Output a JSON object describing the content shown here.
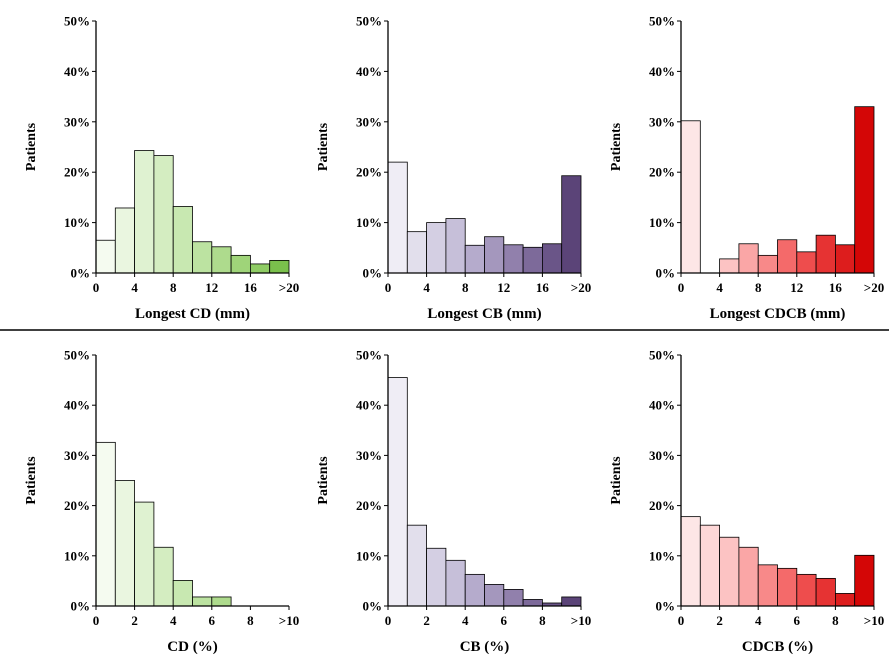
{
  "chart_data": [
    {
      "type": "bar",
      "xlabel": "Longest CD (mm)",
      "ylabel": "Patients",
      "ylim": [
        0,
        50
      ],
      "yticks": [
        "0%",
        "10%",
        "20%",
        "30%",
        "40%",
        "50%"
      ],
      "xticks": [
        "0",
        "4",
        "8",
        "12",
        "16",
        ">20"
      ],
      "values": [
        6.5,
        12.9,
        24.3,
        23.3,
        13.2,
        6.2,
        5.2,
        3.5,
        1.8,
        2.5
      ],
      "colors": [
        "#f5fbf0",
        "#eaf6e0",
        "#dff2d1",
        "#d4edc1",
        "#c8e8b1",
        "#bce3a1",
        "#aedb8d",
        "#9fd479",
        "#8fcc65",
        "#7ac04c"
      ]
    },
    {
      "type": "bar",
      "xlabel": "Longest CB (mm)",
      "ylabel": "Patients",
      "ylim": [
        0,
        50
      ],
      "yticks": [
        "0%",
        "10%",
        "20%",
        "30%",
        "40%",
        "50%"
      ],
      "xticks": [
        "0",
        "4",
        "8",
        "12",
        "16",
        ">20"
      ],
      "values": [
        22.0,
        8.2,
        10.0,
        10.8,
        5.5,
        7.2,
        5.6,
        5.1,
        5.8,
        19.3
      ],
      "colors": [
        "#efedf5",
        "#e2dfec",
        "#d4cfe3",
        "#c6bfd9",
        "#b5abcc",
        "#a497bd",
        "#9180ac",
        "#7d6a9a",
        "#6a5588",
        "#5b4478"
      ]
    },
    {
      "type": "bar",
      "xlabel": "Longest CDCB (mm)",
      "ylabel": "Patients",
      "ylim": [
        0,
        50
      ],
      "yticks": [
        "0%",
        "10%",
        "20%",
        "30%",
        "40%",
        "50%"
      ],
      "xticks": [
        "0",
        "4",
        "8",
        "12",
        "16",
        ">20"
      ],
      "values": [
        30.2,
        0,
        2.8,
        5.8,
        3.5,
        6.6,
        4.2,
        7.5,
        5.6,
        33.0
      ],
      "colors": [
        "#fde6e6",
        "#fdd7d7",
        "#fcc3c3",
        "#faa6a6",
        "#f88989",
        "#f46a6a",
        "#ee4d4d",
        "#e63333",
        "#dd1d1d",
        "#d40606"
      ]
    },
    {
      "type": "bar",
      "xlabel": "CD (%)",
      "ylabel": "Patients",
      "ylim": [
        0,
        50
      ],
      "yticks": [
        "0%",
        "10%",
        "20%",
        "30%",
        "40%",
        "50%"
      ],
      "xticks": [
        "0",
        "2",
        "4",
        "6",
        "8",
        ">10"
      ],
      "values": [
        32.6,
        25.0,
        20.7,
        11.7,
        5.1,
        1.8,
        1.8,
        0,
        0,
        0
      ],
      "colors": [
        "#f5fbf0",
        "#eaf6e0",
        "#dff2d1",
        "#d4edc1",
        "#c8e8b1",
        "#bce3a1",
        "#aedb8d",
        "#9fd479",
        "#8fcc65",
        "#7ac04c"
      ]
    },
    {
      "type": "bar",
      "xlabel": "CB (%)",
      "ylabel": "Patients",
      "ylim": [
        0,
        50
      ],
      "yticks": [
        "0%",
        "10%",
        "20%",
        "30%",
        "40%",
        "50%"
      ],
      "xticks": [
        "0",
        "2",
        "4",
        "6",
        "8",
        ">10"
      ],
      "values": [
        45.5,
        16.1,
        11.5,
        9.1,
        6.3,
        4.3,
        3.3,
        1.3,
        0.6,
        1.8
      ],
      "colors": [
        "#efedf5",
        "#e2dfec",
        "#d4cfe3",
        "#c6bfd9",
        "#b5abcc",
        "#a497bd",
        "#9180ac",
        "#7d6a9a",
        "#6a5588",
        "#5b4478"
      ]
    },
    {
      "type": "bar",
      "xlabel": "CDCB (%)",
      "ylabel": "Patients",
      "ylim": [
        0,
        50
      ],
      "yticks": [
        "0%",
        "10%",
        "20%",
        "30%",
        "40%",
        "50%"
      ],
      "xticks": [
        "0",
        "2",
        "4",
        "6",
        "8",
        ">10"
      ],
      "values": [
        17.8,
        16.1,
        13.7,
        11.7,
        8.2,
        7.5,
        6.3,
        5.5,
        2.5,
        10.1
      ],
      "colors": [
        "#fde6e6",
        "#fdd7d7",
        "#fcc3c3",
        "#faa6a6",
        "#f88989",
        "#f46a6a",
        "#ee4d4d",
        "#e63333",
        "#dd1d1d",
        "#d40606"
      ]
    }
  ]
}
